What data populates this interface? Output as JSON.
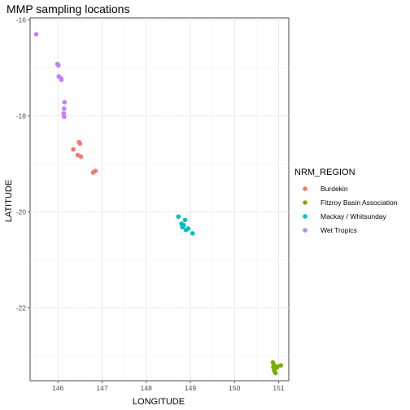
{
  "chart_data": {
    "type": "scatter",
    "title": "MMP sampling locations",
    "xlabel": "LONGITUDE",
    "ylabel": "LATITUDE",
    "xlim": [
      145.37,
      151.23
    ],
    "ylim": [
      -23.52,
      -15.96
    ],
    "x_ticks": [
      146,
      147,
      148,
      149,
      150,
      151
    ],
    "y_ticks": [
      -16,
      -18,
      -20,
      -22
    ],
    "grid": true,
    "legend": {
      "title": "NRM_REGION",
      "placement": "right"
    },
    "series": [
      {
        "name": "Burdekin",
        "color": "#F8766D",
        "points": [
          [
            146.35,
            -18.7
          ],
          [
            146.48,
            -18.55
          ],
          [
            146.5,
            -18.58
          ],
          [
            146.45,
            -18.82
          ],
          [
            146.52,
            -18.85
          ],
          [
            146.8,
            -19.18
          ],
          [
            146.85,
            -19.15
          ]
        ]
      },
      {
        "name": "Fitzroy Basin Association",
        "color": "#7CAE00",
        "points": [
          [
            150.87,
            -23.14
          ],
          [
            150.9,
            -23.2
          ],
          [
            150.92,
            -23.22
          ],
          [
            150.95,
            -23.25
          ],
          [
            150.97,
            -23.23
          ],
          [
            151.05,
            -23.2
          ],
          [
            150.9,
            -23.31
          ],
          [
            150.93,
            -23.36
          ],
          [
            150.88,
            -23.24
          ]
        ]
      },
      {
        "name": "Mackay / Whitsunday",
        "color": "#00BFC4",
        "points": [
          [
            148.73,
            -20.1
          ],
          [
            148.8,
            -20.25
          ],
          [
            148.82,
            -20.32
          ],
          [
            148.88,
            -20.17
          ],
          [
            148.9,
            -20.38
          ],
          [
            148.95,
            -20.35
          ],
          [
            148.85,
            -20.28
          ],
          [
            149.05,
            -20.45
          ]
        ]
      },
      {
        "name": "Wet Tropics",
        "color": "#C77CFF",
        "points": [
          [
            145.51,
            -16.3
          ],
          [
            145.99,
            -16.92
          ],
          [
            146.01,
            -16.95
          ],
          [
            146.02,
            -17.18
          ],
          [
            146.07,
            -17.22
          ],
          [
            146.08,
            -17.25
          ],
          [
            146.15,
            -17.72
          ],
          [
            146.14,
            -17.85
          ],
          [
            146.13,
            -17.95
          ],
          [
            146.14,
            -18.02
          ]
        ]
      }
    ]
  }
}
